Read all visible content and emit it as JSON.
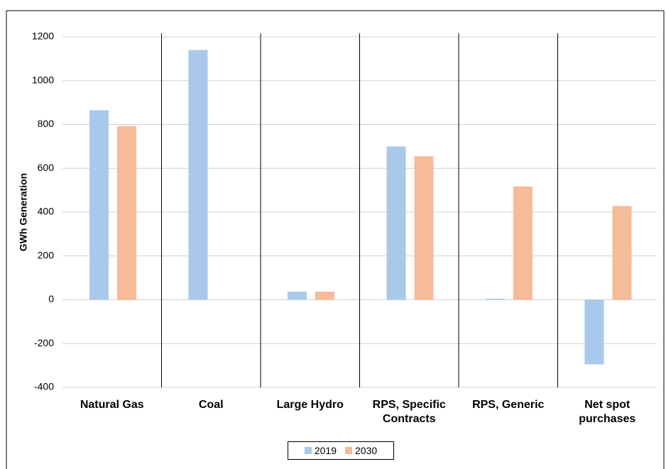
{
  "chart_data": {
    "type": "bar",
    "y_label": "GWh Generation",
    "categories": [
      "Natural Gas",
      "Coal",
      "Large Hydro",
      "RPS, Specific Contracts",
      "RPS, Generic",
      "Net spot purchases"
    ],
    "series": [
      {
        "name": "2019",
        "color": "#a9c9ea",
        "values": [
          865,
          1140,
          37,
          700,
          5,
          -295
        ]
      },
      {
        "name": "2030",
        "color": "#f6bb98",
        "values": [
          792,
          0,
          37,
          655,
          517,
          428
        ]
      }
    ],
    "ylim": [
      -400,
      1200
    ],
    "yticks": [
      -400,
      -200,
      0,
      200,
      400,
      600,
      800,
      1000,
      1200
    ],
    "grid": true
  }
}
